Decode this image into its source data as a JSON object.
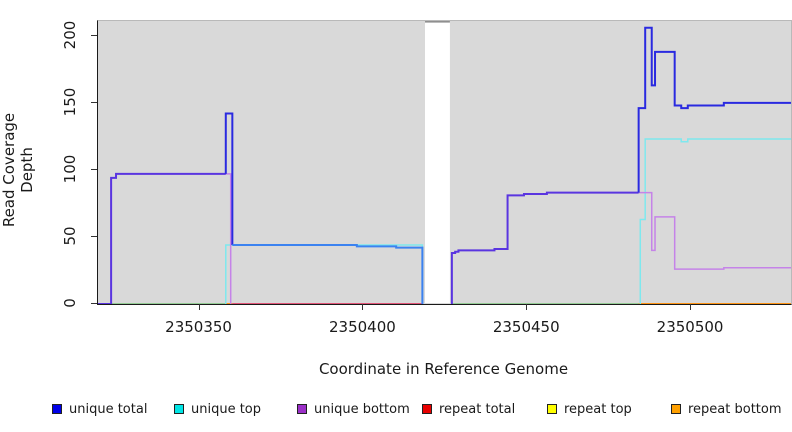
{
  "chart": {
    "xlabel": "Coordinate in Reference Genome",
    "ylabel": "Read Coverage Depth"
  },
  "legend": {
    "items": [
      {
        "label": "unique total",
        "color": "#0000e8"
      },
      {
        "label": "unique top",
        "color": "#00e5e5"
      },
      {
        "label": "unique bottom",
        "color": "#9b30c8"
      },
      {
        "label": "repeat total",
        "color": "#e80000"
      },
      {
        "label": "repeat top",
        "color": "#ffff00"
      },
      {
        "label": "repeat bottom",
        "color": "#ffa000"
      }
    ]
  },
  "chart_data": {
    "type": "line",
    "title": "",
    "xlabel": "Coordinate in Reference Genome",
    "ylabel": "Read Coverage Depth",
    "xlim": [
      2350319,
      2350530.5
    ],
    "ylim": [
      0,
      211
    ],
    "x_ticks": [
      2350350,
      2350400,
      2350450,
      2350500
    ],
    "y_ticks": [
      0,
      50,
      100,
      150,
      200
    ],
    "panel_bg": "#d9d9d9",
    "grid": false,
    "legend_position": "bottom",
    "gap_region": {
      "from": 2350418.8,
      "to": 2350426.4,
      "color": "#ffffff",
      "top_edge_color": "#8f8f8f"
    },
    "series_semantics": "unique total = unique top + unique bottom; repeat series are 0 everywhere (visible only as colored zero-baseline blends)",
    "series": [
      {
        "name": "baseline-green-left",
        "represents": "zero baseline blend (unique top + repeat lines)",
        "color": "#7dc87d",
        "width": 1.5,
        "points": [
          [
            2350323,
            0
          ],
          [
            2350358,
            0
          ]
        ]
      },
      {
        "name": "baseline-orange-mid",
        "represents": "zero baseline blend (repeat lines)",
        "color": "#ff9414",
        "width": 2,
        "points": [
          [
            2350358,
            0
          ],
          [
            2350360,
            0
          ]
        ]
      },
      {
        "name": "baseline-crimson",
        "represents": "zero baseline blend (unique bottom + repeat lines)",
        "color": "#e25578",
        "width": 2,
        "points": [
          [
            2350360,
            0
          ],
          [
            2350418,
            0
          ]
        ]
      },
      {
        "name": "unique-top-left",
        "represents": "unique top",
        "color": "#7ee8ee",
        "width": 1.5,
        "points": [
          [
            2350358,
            0
          ],
          [
            2350358,
            44
          ],
          [
            2350418,
            44
          ],
          [
            2350418,
            0
          ]
        ]
      },
      {
        "name": "unique-bottom-left-drop",
        "represents": "unique bottom",
        "color": "#c583e8",
        "width": 1.5,
        "points": [
          [
            2350358,
            97
          ],
          [
            2350359.5,
            97
          ],
          [
            2350359.5,
            0
          ]
        ]
      },
      {
        "name": "unique-total-left",
        "represents": "unique total over unique bottom",
        "color": "#5a35e0",
        "width": 2,
        "points": [
          [
            2350319,
            0
          ],
          [
            2350323,
            0
          ],
          [
            2350323,
            94
          ],
          [
            2350324.5,
            94
          ],
          [
            2350324.5,
            97
          ],
          [
            2350358,
            97
          ]
        ]
      },
      {
        "name": "unique-total-spike",
        "represents": "unique total",
        "color": "#2a2ae0",
        "width": 2,
        "points": [
          [
            2350358,
            97
          ],
          [
            2350358,
            142
          ],
          [
            2350360,
            142
          ],
          [
            2350360,
            44
          ]
        ]
      },
      {
        "name": "unique-total-mid",
        "represents": "unique total over unique top",
        "color": "#3b82f0",
        "width": 2,
        "points": [
          [
            2350360,
            44
          ],
          [
            2350398,
            44
          ],
          [
            2350398,
            43
          ],
          [
            2350410,
            43
          ],
          [
            2350410,
            42
          ],
          [
            2350418,
            42
          ],
          [
            2350418,
            0
          ]
        ]
      },
      {
        "name": "baseline-green-right",
        "represents": "zero baseline blend (unique top + repeat lines)",
        "color": "#7dc87d",
        "width": 1.5,
        "points": [
          [
            2350427,
            0
          ],
          [
            2350484,
            0
          ]
        ]
      },
      {
        "name": "baseline-orange-right",
        "represents": "zero baseline blend (repeat lines)",
        "color": "#ff9414",
        "width": 2,
        "points": [
          [
            2350484,
            0
          ],
          [
            2350530.5,
            0
          ]
        ]
      },
      {
        "name": "unique-top-right",
        "represents": "unique top",
        "color": "#7ee8ee",
        "width": 1.5,
        "points": [
          [
            2350484.5,
            0
          ],
          [
            2350484.5,
            63
          ],
          [
            2350486,
            63
          ],
          [
            2350486,
            123
          ],
          [
            2350497,
            123
          ],
          [
            2350497,
            121
          ],
          [
            2350499,
            121
          ],
          [
            2350499,
            123
          ],
          [
            2350530.5,
            123
          ]
        ]
      },
      {
        "name": "unique-total-right-low",
        "represents": "unique total over unique bottom",
        "color": "#5a35e0",
        "width": 2,
        "points": [
          [
            2350427,
            0
          ],
          [
            2350427,
            38
          ],
          [
            2350428,
            38
          ],
          [
            2350428,
            39
          ],
          [
            2350429,
            39
          ],
          [
            2350429,
            40
          ],
          [
            2350440,
            40
          ],
          [
            2350440,
            41
          ],
          [
            2350444,
            41
          ],
          [
            2350444,
            81
          ],
          [
            2350449,
            81
          ],
          [
            2350449,
            82
          ],
          [
            2350456,
            82
          ],
          [
            2350456,
            83
          ],
          [
            2350484,
            83
          ]
        ]
      },
      {
        "name": "unique-bottom-right",
        "represents": "unique bottom",
        "color": "#c583e8",
        "width": 1.5,
        "points": [
          [
            2350484,
            83
          ],
          [
            2350488,
            83
          ],
          [
            2350488,
            40
          ],
          [
            2350489,
            40
          ],
          [
            2350489,
            65
          ],
          [
            2350495,
            65
          ],
          [
            2350495,
            26
          ],
          [
            2350510,
            26
          ],
          [
            2350510,
            27
          ],
          [
            2350530.5,
            27
          ]
        ]
      },
      {
        "name": "unique-total-right-high",
        "represents": "unique total",
        "color": "#2a2ae0",
        "width": 2,
        "points": [
          [
            2350484,
            83
          ],
          [
            2350484,
            146
          ],
          [
            2350486,
            146
          ],
          [
            2350486,
            206
          ],
          [
            2350488,
            206
          ],
          [
            2350488,
            163
          ],
          [
            2350489,
            163
          ],
          [
            2350489,
            188
          ],
          [
            2350495,
            188
          ],
          [
            2350495,
            148
          ],
          [
            2350497,
            148
          ],
          [
            2350497,
            146
          ],
          [
            2350499,
            146
          ],
          [
            2350499,
            148
          ],
          [
            2350510,
            148
          ],
          [
            2350510,
            150
          ],
          [
            2350530.5,
            150
          ]
        ]
      }
    ]
  }
}
